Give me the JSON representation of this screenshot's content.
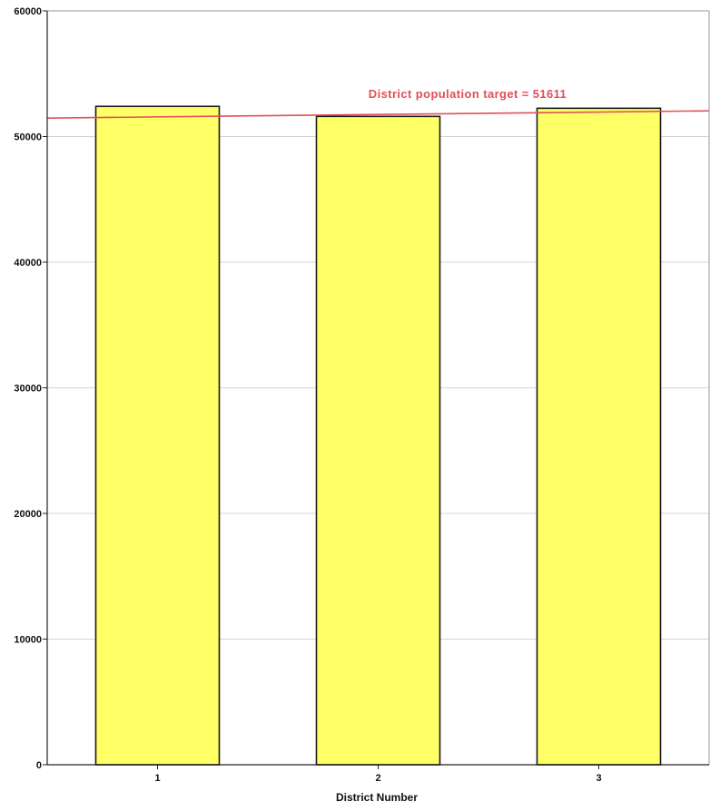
{
  "chart_data": {
    "type": "bar",
    "title": "",
    "xlabel": "District Number",
    "ylabel": "",
    "categories": [
      "1",
      "2",
      "3"
    ],
    "values": [
      52400,
      51600,
      52250
    ],
    "ylim": [
      0,
      60000
    ],
    "yticks": [
      "0",
      "10000",
      "20000",
      "30000",
      "40000",
      "50000",
      "60000"
    ],
    "grid": true,
    "legend": "none",
    "bar_color": "#ffff66",
    "bar_edge_color": "#1a1a1a",
    "reference_line": {
      "value": 51611,
      "label": "District population target = 51611",
      "color": "#e0505a"
    }
  }
}
